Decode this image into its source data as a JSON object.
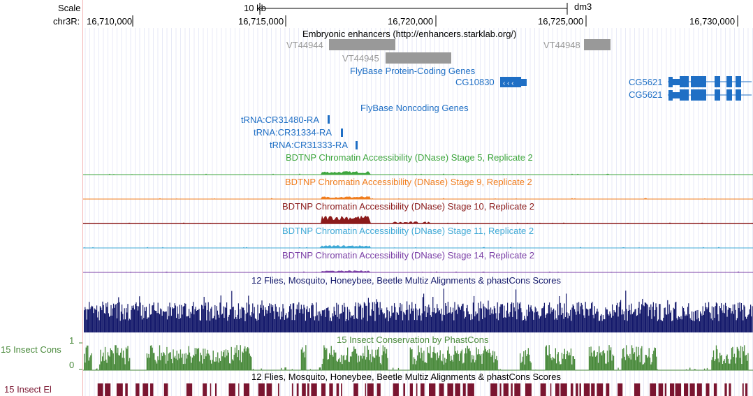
{
  "header": {
    "scale_label": "Scale",
    "chrom_label": "chr3R:",
    "scale_bar_label": "10 kb",
    "assembly": "dm3",
    "positions": [
      "16,710,000",
      "16,715,000",
      "16,720,000",
      "16,725,000",
      "16,730,000"
    ]
  },
  "tracks": {
    "enhancers": {
      "title": "Embryonic enhancers (http://enhancers.starklab.org/)",
      "items": [
        "VT44944",
        "VT44945",
        "VT44948"
      ],
      "color": "#999999"
    },
    "coding_genes": {
      "title": "FlyBase Protein-Coding Genes",
      "items": [
        "CG10830",
        "CG5621",
        "CG5621"
      ],
      "color": "#1f6fc5"
    },
    "noncoding_genes": {
      "title": "FlyBase Noncoding Genes",
      "items": [
        "tRNA:CR31480-RA",
        "tRNA:CR31334-RA",
        "tRNA:CR31333-RA"
      ],
      "color": "#1f6fc5"
    },
    "dnase": [
      {
        "title": "BDTNP Chromatin Accessibility (DNase) Stage 5, Replicate 2",
        "color": "#3ea63e"
      },
      {
        "title": "BDTNP Chromatin Accessibility (DNase) Stage 9, Replicate 2",
        "color": "#f07d1e"
      },
      {
        "title": "BDTNP Chromatin Accessibility (DNase) Stage 10, Replicate 2",
        "color": "#8b1a1a"
      },
      {
        "title": "BDTNP Chromatin Accessibility (DNase) Stage 11, Replicate 2",
        "color": "#3fa9d6"
      },
      {
        "title": "BDTNP Chromatin Accessibility (DNase) Stage 14, Replicate 2",
        "color": "#7b3fa6"
      }
    ],
    "multiz": {
      "title": "12 Flies, Mosquito, Honeybee, Beetle Multiz Alignments & phastCons Scores",
      "color": "#14196b"
    },
    "insect_cons": {
      "side_label": "15 Insect Cons",
      "title": "15 Insect Conservation by PhastCons",
      "axis_max": "1",
      "axis_min": "0",
      "color": "#4a8a3c"
    },
    "insect_el": {
      "side_label": "15 Insect El",
      "title": "12 Flies, Mosquito, Honeybee, Beetle Multiz Alignments & phastCons Scores",
      "color": "#7a1530"
    }
  }
}
